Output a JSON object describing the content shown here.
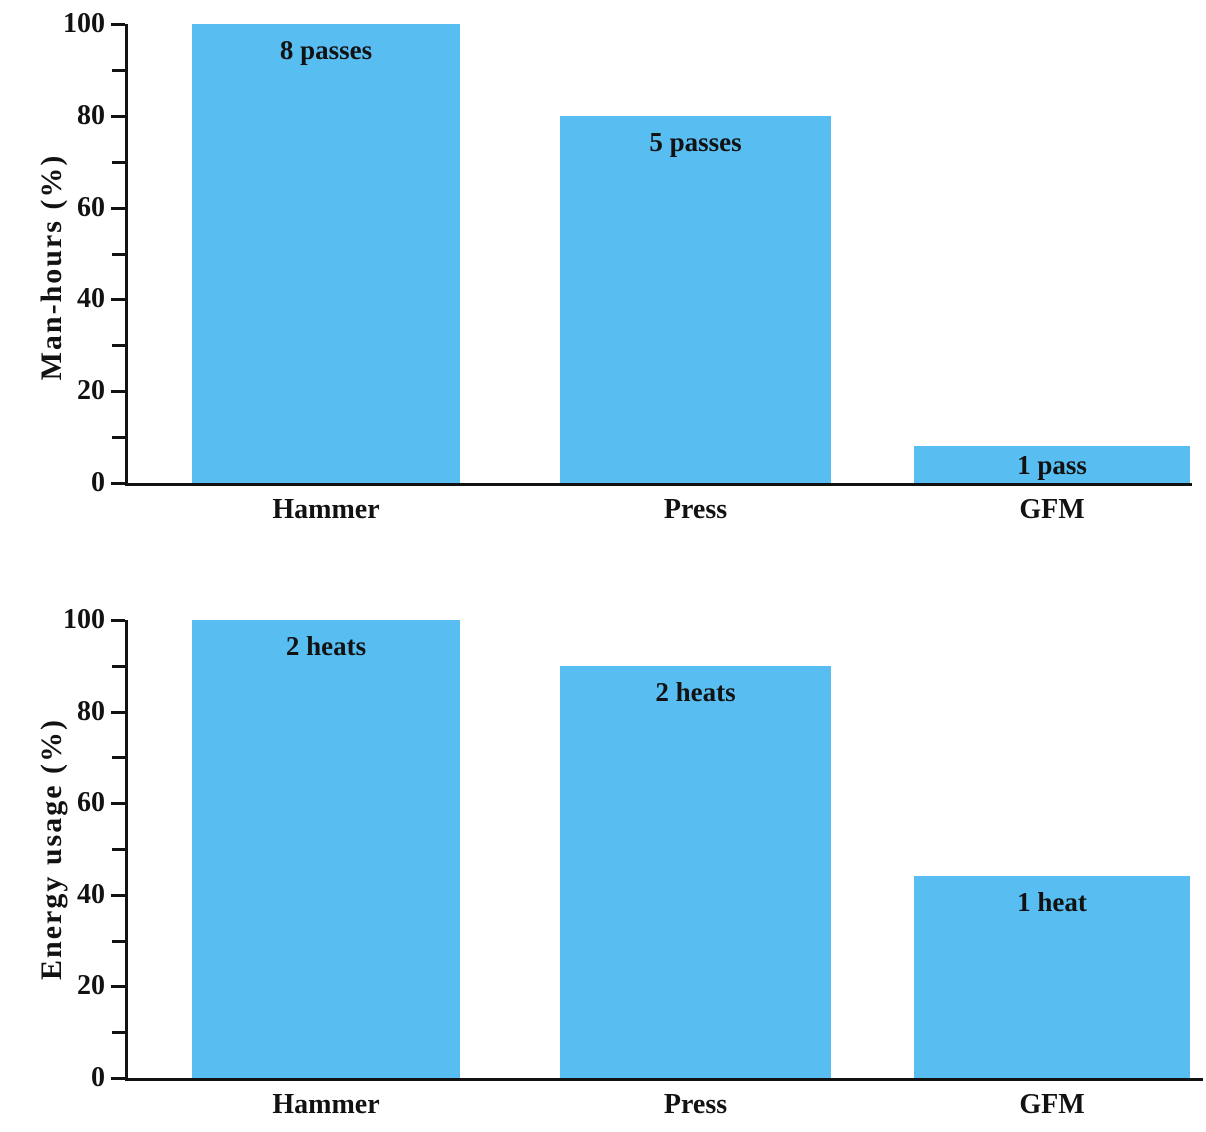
{
  "figure": {
    "background": "#ffffff",
    "text_color": "#121212",
    "axis_color": "#121212"
  },
  "chart_data": [
    {
      "type": "bar",
      "title": "",
      "xlabel": "",
      "ylabel": "Man-hours (%)",
      "categories": [
        "Hammer",
        "Press",
        "GFM"
      ],
      "values": [
        100,
        80,
        8
      ],
      "bar_labels": [
        "8 passes",
        "5 passes",
        "1 pass"
      ],
      "ylim": [
        0,
        100
      ],
      "ytick_major": [
        0,
        20,
        40,
        60,
        80,
        100
      ],
      "ytick_minor": [
        10,
        30,
        50,
        70,
        90
      ],
      "bar_color": "#58bef2",
      "grid": false,
      "legend": false
    },
    {
      "type": "bar",
      "title": "",
      "xlabel": "",
      "ylabel": "Energy usage (%)",
      "categories": [
        "Hammer",
        "Press",
        "GFM"
      ],
      "values": [
        100,
        90,
        44
      ],
      "bar_labels": [
        "2 heats",
        "2 heats",
        "1 heat"
      ],
      "ylim": [
        0,
        100
      ],
      "ytick_major": [
        0,
        20,
        40,
        60,
        80,
        100
      ],
      "ytick_minor": [
        10,
        30,
        50,
        70,
        90
      ],
      "bar_color": "#58bef2",
      "grid": false,
      "legend": false
    }
  ]
}
